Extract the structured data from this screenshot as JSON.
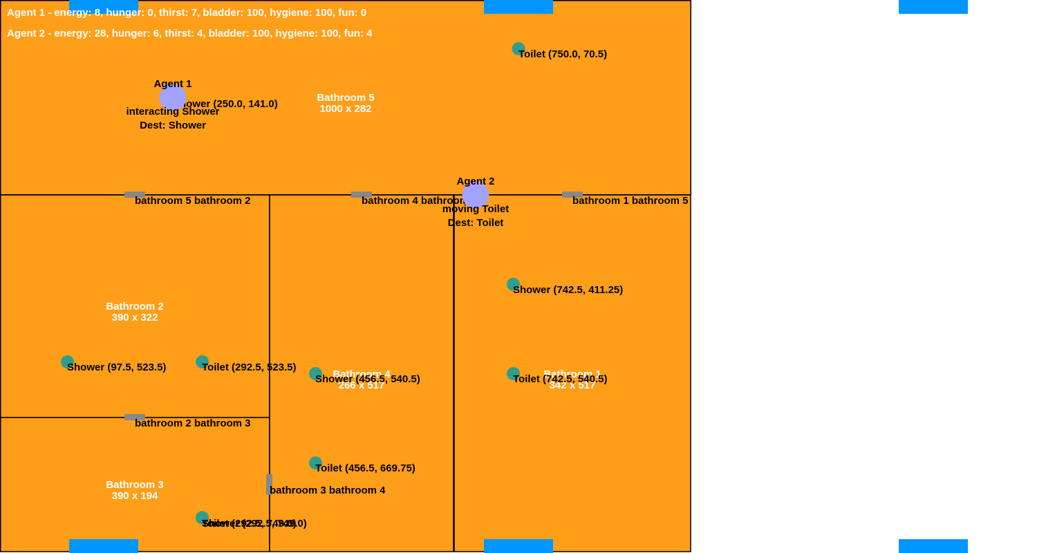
{
  "colors": {
    "room_fill": "#FF9E18",
    "object": "#2E9E8E",
    "agent": "#A3A3FF",
    "door": "#888888",
    "spawn": "#0096FF"
  },
  "rooms": [
    {
      "name": "Bathroom 5",
      "size": "1000 x 282"
    },
    {
      "name": "Bathroom 2",
      "size": "390 x 322"
    },
    {
      "name": "Bathroom 3",
      "size": "390 x 194"
    },
    {
      "name": "Bathroom 4",
      "size": "266 x 517"
    },
    {
      "name": "Bathroom 1",
      "size": "342 x 517"
    }
  ],
  "objects": [
    {
      "kind": "toilet",
      "label": "Toilet (750.0, 70.5)"
    },
    {
      "kind": "shower",
      "label": "Shower (250.0, 141.0)"
    },
    {
      "kind": "shower",
      "label": "Shower (742.5, 411.25)"
    },
    {
      "kind": "toilet",
      "label": "Toilet (742.5, 540.5)"
    },
    {
      "kind": "shower",
      "label": "Shower (97.5, 523.5)"
    },
    {
      "kind": "toilet",
      "label": "Toilet (292.5, 523.5)"
    },
    {
      "kind": "shower",
      "label": "Shower (456.5, 540.5)"
    },
    {
      "kind": "toilet",
      "label": "Toilet (456.5, 669.75)"
    },
    {
      "kind": "shower",
      "label": "Shower (292.5, 749.0)"
    },
    {
      "kind": "toilet",
      "label": "Toilet (292.5, 749.0)"
    }
  ],
  "doors": [
    {
      "label": "bathroom 5 bathroom 2"
    },
    {
      "label": "bathroom 4 bathroom 5"
    },
    {
      "label": "bathroom 1 bathroom 5"
    },
    {
      "label": "bathroom 2 bathroom 3"
    },
    {
      "label": "bathroom 3 bathroom 4"
    }
  ],
  "agents": [
    {
      "name": "Agent 1",
      "state": "interacting Shower",
      "dest": "Dest: Shower"
    },
    {
      "name": "Agent 2",
      "state": "moving Toilet",
      "dest": "Dest: Toilet"
    }
  ],
  "status": [
    "Agent 1 - energy: 8, hunger: 0, thirst: 7, bladder: 100, hygiene: 100, fun: 0",
    "Agent 2 - energy: 28, hunger: 6, thirst: 4, bladder: 100, hygiene: 100, fun: 4"
  ]
}
